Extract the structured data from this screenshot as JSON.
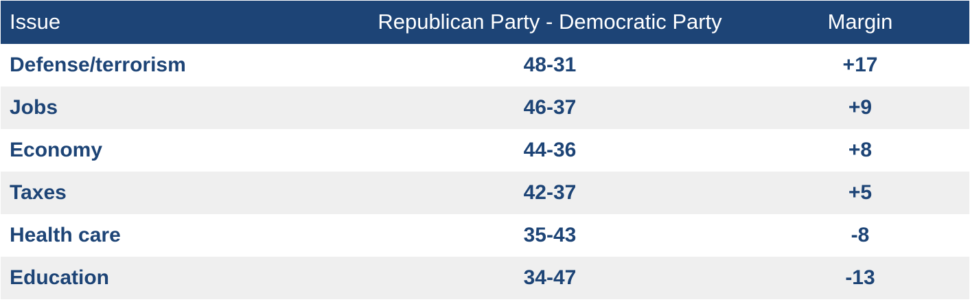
{
  "table": {
    "header": [
      "Issue",
      "Republican Party - Democratic Party",
      "Margin"
    ],
    "rows": [
      [
        "Defense/terrorism",
        "48-31",
        "+17"
      ],
      [
        "Jobs",
        "46-37",
        "+9"
      ],
      [
        "Economy",
        "44-36",
        "+8"
      ],
      [
        "Taxes",
        "42-37",
        "+5"
      ],
      [
        "Health care",
        "35-43",
        "-8"
      ],
      [
        "Education",
        "34-47",
        "-13"
      ]
    ]
  }
}
